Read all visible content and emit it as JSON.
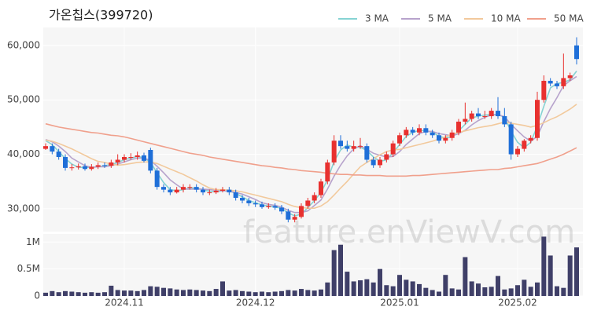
{
  "chart_data": {
    "type": "candlestick",
    "title": "가온칩스(399720)",
    "watermark": "feature.enViewV.com",
    "categories": [
      null,
      null,
      null,
      null,
      null,
      null,
      null,
      null,
      null,
      null,
      null,
      null,
      "2024.11",
      null,
      null,
      null,
      null,
      null,
      null,
      null,
      null,
      null,
      null,
      null,
      null,
      null,
      null,
      null,
      null,
      null,
      null,
      null,
      "2024.12",
      null,
      null,
      null,
      null,
      null,
      null,
      null,
      null,
      null,
      null,
      null,
      null,
      null,
      null,
      null,
      null,
      null,
      null,
      null,
      null,
      null,
      "2025.01",
      null,
      null,
      null,
      null,
      null,
      null,
      null,
      null,
      null,
      null,
      null,
      null,
      null,
      null,
      null,
      null,
      null,
      "2025.02",
      null,
      null,
      null,
      null,
      null,
      null,
      null,
      null,
      null
    ],
    "open": [
      41000,
      41500,
      40500,
      39500,
      37500,
      37600,
      37800,
      37300,
      37700,
      38000,
      37900,
      38500,
      39000,
      39500,
      39500,
      39800,
      40800,
      37000,
      34000,
      33500,
      33000,
      33500,
      34000,
      34000,
      33500,
      33000,
      33000,
      33300,
      33500,
      33000,
      32000,
      31500,
      31000,
      30800,
      30300,
      30500,
      30200,
      29500,
      28000,
      28500,
      30500,
      31500,
      32500,
      35000,
      38500,
      42500,
      41500,
      41000,
      41500,
      41500,
      39000,
      38000,
      39000,
      40000,
      42000,
      43500,
      44500,
      44000,
      44800,
      44000,
      43500,
      42500,
      43000,
      44000,
      46000,
      46500,
      47500,
      47000,
      47000,
      48000,
      47000,
      45500,
      40000,
      41000,
      42500,
      43000,
      50000,
      53500,
      53000,
      52500,
      54000,
      60000
    ],
    "high": [
      42000,
      42000,
      41000,
      40000,
      38200,
      38300,
      38300,
      38200,
      38500,
      38500,
      39000,
      40000,
      40000,
      40200,
      40500,
      40300,
      41200,
      37500,
      34500,
      34000,
      34000,
      34500,
      34500,
      34500,
      34000,
      33500,
      33800,
      34000,
      34000,
      33500,
      32500,
      32000,
      31500,
      31300,
      31000,
      31000,
      30700,
      30000,
      29000,
      31000,
      32000,
      33000,
      35500,
      39000,
      43500,
      43500,
      42500,
      42500,
      43000,
      42000,
      39500,
      39500,
      40500,
      42500,
      44000,
      45000,
      45000,
      45500,
      45500,
      44500,
      44000,
      43500,
      44500,
      46500,
      49500,
      48000,
      48500,
      48000,
      48500,
      50500,
      48500,
      46000,
      41500,
      42800,
      43500,
      51500,
      54500,
      54000,
      53500,
      58500,
      55000,
      61500
    ],
    "low": [
      40800,
      40000,
      39000,
      37000,
      37000,
      37200,
      37000,
      37000,
      37300,
      37500,
      37500,
      38000,
      38500,
      39000,
      39000,
      38500,
      36500,
      33500,
      33000,
      32500,
      32800,
      33000,
      33500,
      33000,
      32500,
      32500,
      32700,
      33000,
      32500,
      31500,
      31000,
      30500,
      30300,
      30000,
      30000,
      29800,
      29000,
      27500,
      27500,
      28200,
      30000,
      31000,
      32000,
      34500,
      38000,
      41000,
      40500,
      40500,
      41000,
      38500,
      37500,
      37500,
      38500,
      39500,
      41500,
      43000,
      43500,
      43500,
      43500,
      43000,
      42000,
      42000,
      42500,
      43500,
      45500,
      46000,
      46500,
      46500,
      46500,
      46500,
      45000,
      39000,
      39500,
      40500,
      42000,
      42500,
      49500,
      52500,
      52000,
      52000,
      53500,
      56500
    ],
    "close": [
      41500,
      40500,
      39500,
      37500,
      37600,
      37800,
      37300,
      37700,
      38000,
      37900,
      38500,
      39000,
      39500,
      39500,
      39800,
      38800,
      37000,
      34000,
      33500,
      33000,
      33500,
      34000,
      34000,
      33500,
      33000,
      33000,
      33300,
      33500,
      33000,
      32000,
      31500,
      31000,
      30800,
      30300,
      30500,
      30200,
      29500,
      28000,
      28500,
      30500,
      31500,
      32500,
      35000,
      38500,
      42500,
      41500,
      41000,
      41500,
      41500,
      39000,
      38000,
      39000,
      40000,
      42000,
      43500,
      44500,
      44000,
      44800,
      44000,
      43500,
      42500,
      43000,
      44000,
      46000,
      46500,
      47500,
      47000,
      47000,
      48000,
      47000,
      45500,
      40000,
      41000,
      42500,
      43000,
      50000,
      53500,
      53000,
      52500,
      54000,
      54500,
      57500
    ],
    "up_color": "#e8312f",
    "down_color": "#1f6fd8",
    "ylim": [
      25800,
      63300
    ],
    "yticks": [
      {
        "value": 30000,
        "label": "30,000"
      },
      {
        "value": 40000,
        "label": "40,000"
      },
      {
        "value": 50000,
        "label": "50,000"
      },
      {
        "value": 60000,
        "label": "60,000"
      }
    ],
    "grid": true,
    "ma": [
      {
        "name": "3 MA",
        "color": "#86d3d3",
        "values": [
          42500,
          41800,
          40500,
          39200,
          38200,
          37600,
          37600,
          37600,
          37700,
          37900,
          38100,
          38500,
          39000,
          39300,
          39600,
          39400,
          38500,
          36600,
          34800,
          33500,
          33300,
          33500,
          33800,
          33800,
          33500,
          33200,
          33100,
          33300,
          33300,
          32800,
          32200,
          31500,
          31100,
          30700,
          30500,
          30300,
          30100,
          29200,
          28700,
          29000,
          30200,
          31500,
          33000,
          35300,
          38700,
          40800,
          41700,
          41300,
          41300,
          40700,
          39500,
          38700,
          39000,
          40300,
          41800,
          43300,
          44000,
          44400,
          44300,
          44100,
          43300,
          43000,
          43200,
          44300,
          45500,
          46700,
          47000,
          47200,
          47300,
          47300,
          46800,
          44200,
          42200,
          41200,
          42200,
          45200,
          48800,
          52200,
          53000,
          53200,
          53700,
          55300
        ]
      },
      {
        "name": "5 MA",
        "color": "#b7a3cc",
        "values": [
          42700,
          42300,
          41500,
          40500,
          39300,
          38600,
          37900,
          37600,
          37700,
          37700,
          37900,
          38200,
          38600,
          39000,
          39300,
          39300,
          38900,
          37800,
          36600,
          35300,
          34400,
          33600,
          33600,
          33600,
          33600,
          33500,
          33400,
          33300,
          33200,
          33000,
          32700,
          32200,
          31700,
          31100,
          30800,
          30600,
          30300,
          29700,
          29300,
          29300,
          29600,
          30600,
          31600,
          33600,
          36000,
          38000,
          39700,
          41000,
          41600,
          40900,
          40200,
          39800,
          39500,
          39600,
          40500,
          41800,
          42800,
          43800,
          44200,
          44200,
          43800,
          43600,
          43400,
          43800,
          44400,
          45400,
          46200,
          46800,
          47200,
          47300,
          46900,
          45500,
          44300,
          43200,
          42400,
          43300,
          46000,
          48400,
          50400,
          52600,
          53500,
          54300
        ]
      },
      {
        "name": "10 MA",
        "color": "#f2c99c",
        "values": [
          42600,
          42400,
          42000,
          41500,
          41000,
          40400,
          39800,
          39200,
          38700,
          38500,
          38200,
          38000,
          38100,
          38300,
          38500,
          38600,
          38600,
          38300,
          37800,
          37300,
          36800,
          36300,
          35700,
          35100,
          34400,
          33800,
          33500,
          33500,
          33400,
          33300,
          33100,
          32800,
          32500,
          32200,
          31900,
          31600,
          31300,
          30800,
          30400,
          30200,
          30100,
          30100,
          30500,
          31300,
          32500,
          33800,
          35000,
          36400,
          37700,
          38500,
          39200,
          39900,
          40500,
          40800,
          40900,
          41200,
          41500,
          41800,
          42100,
          42400,
          42800,
          43200,
          43700,
          44000,
          44300,
          44600,
          44900,
          45100,
          45300,
          45600,
          45900,
          45700,
          45500,
          45300,
          45000,
          45300,
          45800,
          46400,
          46900,
          47600,
          48300,
          49200
        ]
      },
      {
        "name": "50 MA",
        "color": "#f0a08c",
        "values": [
          45600,
          45300,
          45000,
          44800,
          44600,
          44400,
          44200,
          44000,
          43900,
          43700,
          43500,
          43400,
          43200,
          42900,
          42600,
          42300,
          42000,
          41700,
          41400,
          41100,
          40800,
          40500,
          40200,
          40000,
          39800,
          39500,
          39300,
          39100,
          38900,
          38700,
          38500,
          38300,
          38100,
          37900,
          37800,
          37600,
          37500,
          37300,
          37200,
          37000,
          36900,
          36800,
          36700,
          36500,
          36400,
          36300,
          36300,
          36200,
          36200,
          36100,
          36100,
          36100,
          36000,
          36000,
          36000,
          36000,
          36100,
          36100,
          36200,
          36300,
          36400,
          36500,
          36600,
          36700,
          36800,
          36900,
          37000,
          37100,
          37200,
          37200,
          37400,
          37500,
          37700,
          37900,
          38100,
          38300,
          38700,
          39100,
          39500,
          40000,
          40600,
          41200
        ]
      }
    ],
    "volume": {
      "color": "#3f3f68",
      "values": [
        60000,
        90000,
        70000,
        90000,
        80000,
        70000,
        60000,
        70000,
        60000,
        70000,
        190000,
        110000,
        100000,
        100000,
        90000,
        110000,
        180000,
        170000,
        150000,
        140000,
        120000,
        110000,
        120000,
        110000,
        100000,
        90000,
        130000,
        270000,
        100000,
        110000,
        90000,
        80000,
        70000,
        80000,
        70000,
        80000,
        90000,
        110000,
        100000,
        130000,
        110000,
        100000,
        120000,
        250000,
        850000,
        950000,
        450000,
        270000,
        290000,
        310000,
        250000,
        500000,
        200000,
        180000,
        390000,
        300000,
        270000,
        220000,
        150000,
        110000,
        80000,
        390000,
        140000,
        120000,
        720000,
        270000,
        230000,
        160000,
        170000,
        370000,
        120000,
        140000,
        200000,
        300000,
        170000,
        250000,
        1100000,
        750000,
        180000,
        150000,
        750000,
        900000
      ],
      "ylim": [
        0,
        1150000
      ],
      "yticks": [
        0,
        {
          "value": 500000,
          "label": "0.5M"
        },
        {
          "value": 1000000,
          "label": "1M"
        }
      ]
    }
  }
}
